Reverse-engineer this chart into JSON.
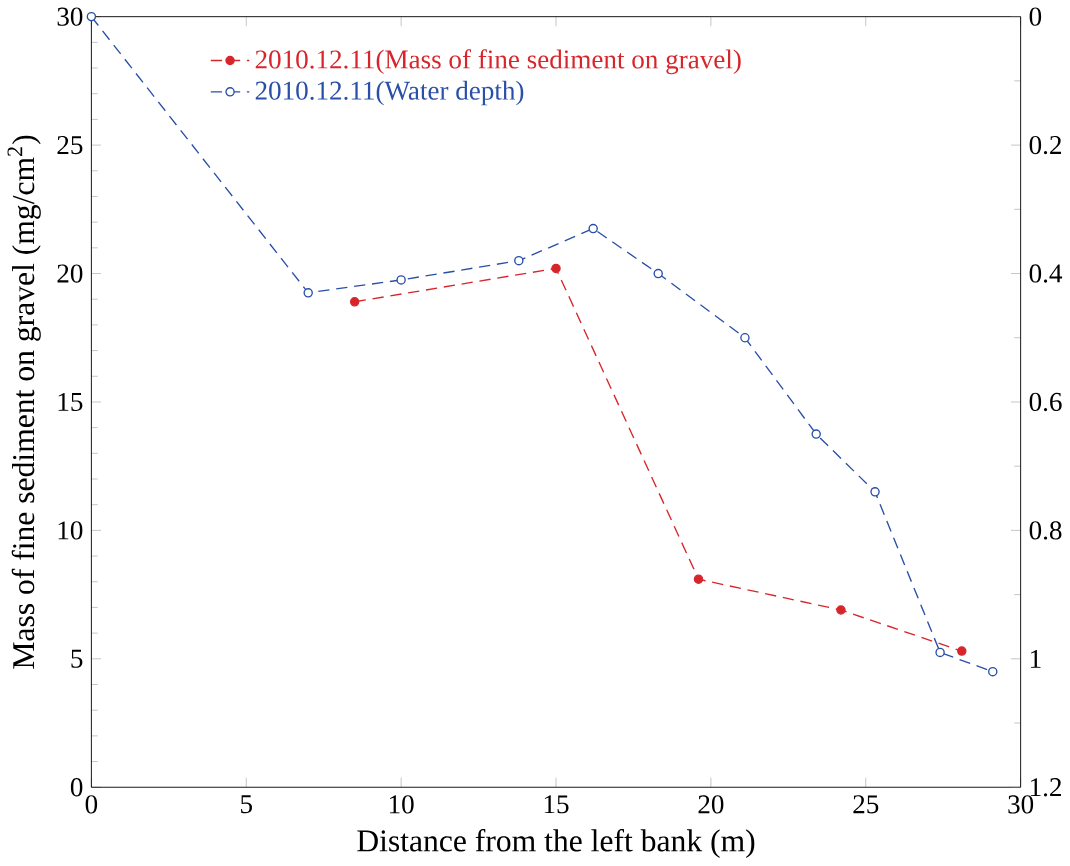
{
  "chart_data": {
    "type": "line",
    "xlabel": "Distance from the left bank (m)",
    "ylabel": "Mass of fine sediment on gravel (mg/cm$^{2}$)",
    "xlim": [
      0,
      30
    ],
    "xticks": [
      0,
      5,
      10,
      15,
      20,
      25,
      30
    ],
    "ylim": [
      0,
      30
    ],
    "yticks": [
      0,
      5,
      10,
      15,
      20,
      25,
      30
    ],
    "y2lim": [
      1.2,
      0
    ],
    "y2ticks": [
      0,
      0.2,
      0.4,
      0.6,
      0.8,
      1,
      1.2
    ],
    "legend": "top left",
    "grid": false,
    "marker": "circle",
    "line_style": "dashed",
    "series": [
      {
        "name": "2010.12.11(Mass of fine sediment on gravel)",
        "color": "#d7262b",
        "x": [
          8.5,
          15.0,
          19.6,
          24.2,
          28.1
        ],
        "values": [
          18.9,
          20.2,
          8.1,
          6.9,
          5.3
        ]
      },
      {
        "name": "2010.12.11(Water depth)",
        "color": "#2a4fa8",
        "axis": "y2",
        "x": [
          0,
          7.0,
          10.0,
          13.8,
          16.2,
          18.3,
          21.1,
          23.4,
          25.3,
          27.4,
          29.1
        ],
        "values": [
          0,
          0.43,
          0.41,
          0.38,
          0.33,
          0.4,
          0.5,
          0.65,
          0.74,
          0.99,
          1.02
        ]
      }
    ]
  }
}
